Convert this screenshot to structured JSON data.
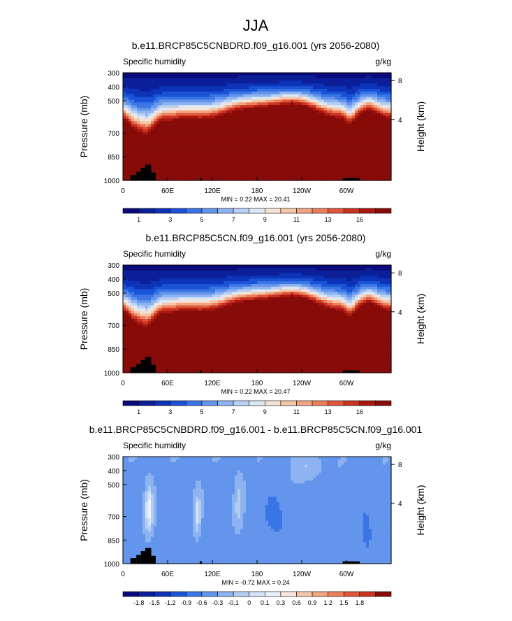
{
  "figure": {
    "title": "JJA"
  },
  "colors": {
    "abs_palette": [
      "#0a0a7a",
      "#0b1f99",
      "#0d34b8",
      "#1a53d6",
      "#3a75e6",
      "#6395ec",
      "#8db3f0",
      "#b8d0f3",
      "#dde8f6",
      "#f7e3d6",
      "#f6c6aa",
      "#f2a382",
      "#ec7e5c",
      "#e0563a",
      "#c93322",
      "#a8180f",
      "#870b08"
    ],
    "diff_palette": [
      "#0a0a7a",
      "#0b1f99",
      "#0d34b8",
      "#1a53d6",
      "#3a75e6",
      "#6395ec",
      "#8db3f0",
      "#b3cdf2",
      "#d3e3f7",
      "#ecf2fb",
      "#fbe6dc",
      "#f6c6aa",
      "#f2a382",
      "#ec7e5c",
      "#e0563a",
      "#c93322",
      "#870b08"
    ],
    "terrain": "#000000"
  },
  "chart_data": [
    {
      "type": "heatmap",
      "title": "b.e11.BRCP85C5CNBDRD.f09_g16.001 (yrs 2056-2080)",
      "left_label": "Specific humidity",
      "right_label": "g/kg",
      "ylabel": "Pressure (mb)",
      "ylabel_right": "Height (km)",
      "x_ticks": [
        "0",
        "60E",
        "120E",
        "180",
        "120W",
        "60W"
      ],
      "y_ticks": [
        "300",
        "400",
        "500",
        "700",
        "850",
        "1000"
      ],
      "y_ticks_right": [
        "8",
        "4"
      ],
      "minmax": "MIN =   0.22  MAX =  20.41",
      "colorbar_labels": [
        "1",
        "3",
        "5",
        "7",
        "9",
        "11",
        "13",
        "16"
      ],
      "field": "abs",
      "min": 0.22,
      "max": 20.41
    },
    {
      "type": "heatmap",
      "title": "b.e11.BRCP85C5CN.f09_g16.001 (yrs 2056-2080)",
      "left_label": "Specific humidity",
      "right_label": "g/kg",
      "ylabel": "Pressure (mb)",
      "ylabel_right": "Height (km)",
      "x_ticks": [
        "0",
        "60E",
        "120E",
        "180",
        "120W",
        "60W"
      ],
      "y_ticks": [
        "300",
        "400",
        "500",
        "700",
        "850",
        "1000"
      ],
      "y_ticks_right": [
        "8",
        "4"
      ],
      "minmax": "MIN =   0.22  MAX =  20.47",
      "colorbar_labels": [
        "1",
        "3",
        "5",
        "7",
        "9",
        "11",
        "13",
        "16"
      ],
      "field": "abs",
      "min": 0.22,
      "max": 20.47
    },
    {
      "type": "heatmap",
      "title": "b.e11.BRCP85C5CNBDRD.f09_g16.001 - b.e11.BRCP85C5CN.f09_g16.001",
      "left_label": "Specific humidity",
      "right_label": "g/kg",
      "ylabel": "Pressure (mb)",
      "ylabel_right": "Height (km)",
      "x_ticks": [
        "0",
        "60E",
        "120E",
        "180",
        "120W",
        "60W"
      ],
      "y_ticks": [
        "300",
        "400",
        "500",
        "700",
        "850",
        "1000"
      ],
      "y_ticks_right": [
        "8",
        "4"
      ],
      "minmax": "MIN =  -0.72  MAX =   0.24",
      "colorbar_labels": [
        "-1.8",
        "-1.5",
        "-1.2",
        "-0.9",
        "-0.6",
        "-0.3",
        "-0.1",
        "0",
        "0.1",
        "0.3",
        "0.6",
        "0.9",
        "1.2",
        "1.5",
        "1.8"
      ],
      "field": "diff",
      "min": -0.72,
      "max": 0.24
    }
  ]
}
